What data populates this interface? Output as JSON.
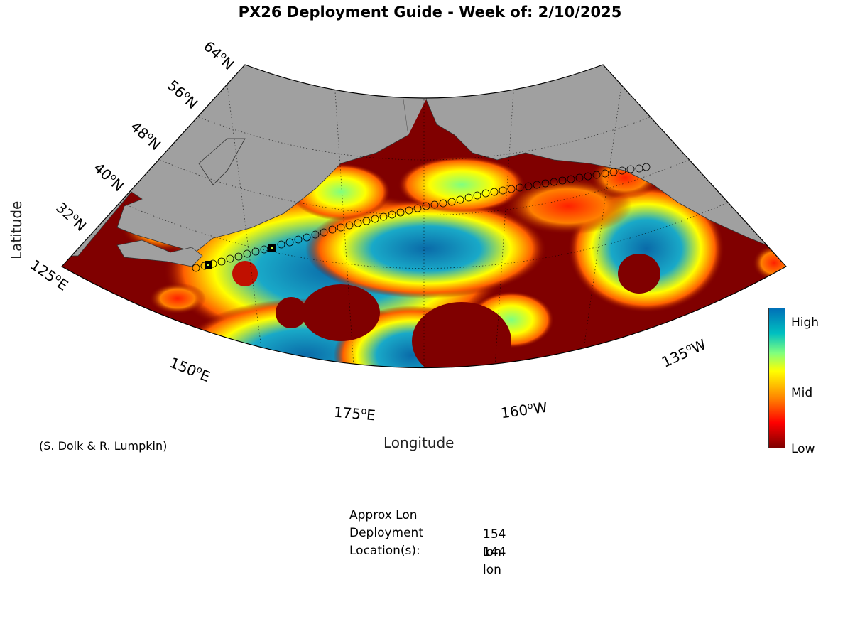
{
  "title": "PX26 Deployment Guide - Week of: 2/10/2025",
  "axes": {
    "xlabel": "Longitude",
    "ylabel": "Latitude"
  },
  "lat_ticks": [
    "64oN",
    "56oN",
    "48oN",
    "40oN",
    "32oN"
  ],
  "lon_ticks": [
    "125oE",
    "150oE",
    "175oE",
    "160oW",
    "135oW"
  ],
  "credit": "(S. Dolk & R. Lumpkin)",
  "colorbar": {
    "labels": [
      "High",
      "Mid",
      "Low"
    ],
    "colors": [
      "#7f0000",
      "#ff0000",
      "#ff8000",
      "#ffff00",
      "#00c0c0",
      "#0070b8"
    ]
  },
  "info": {
    "line1": "Approx Lon",
    "line2": "Deployment",
    "line3": "Location(s):",
    "values": [
      "154 lon",
      "144 lon"
    ]
  },
  "map_colors": {
    "land": "#a0a0a0",
    "low": "#800000",
    "high": "#0a6aa8"
  },
  "chart_data": {
    "type": "heatmap",
    "title": "PX26 Deployment Guide - Week of: 2/10/2025",
    "xlabel": "Longitude",
    "ylabel": "Latitude",
    "deployment_locations_lon": [
      154,
      144
    ]
  }
}
